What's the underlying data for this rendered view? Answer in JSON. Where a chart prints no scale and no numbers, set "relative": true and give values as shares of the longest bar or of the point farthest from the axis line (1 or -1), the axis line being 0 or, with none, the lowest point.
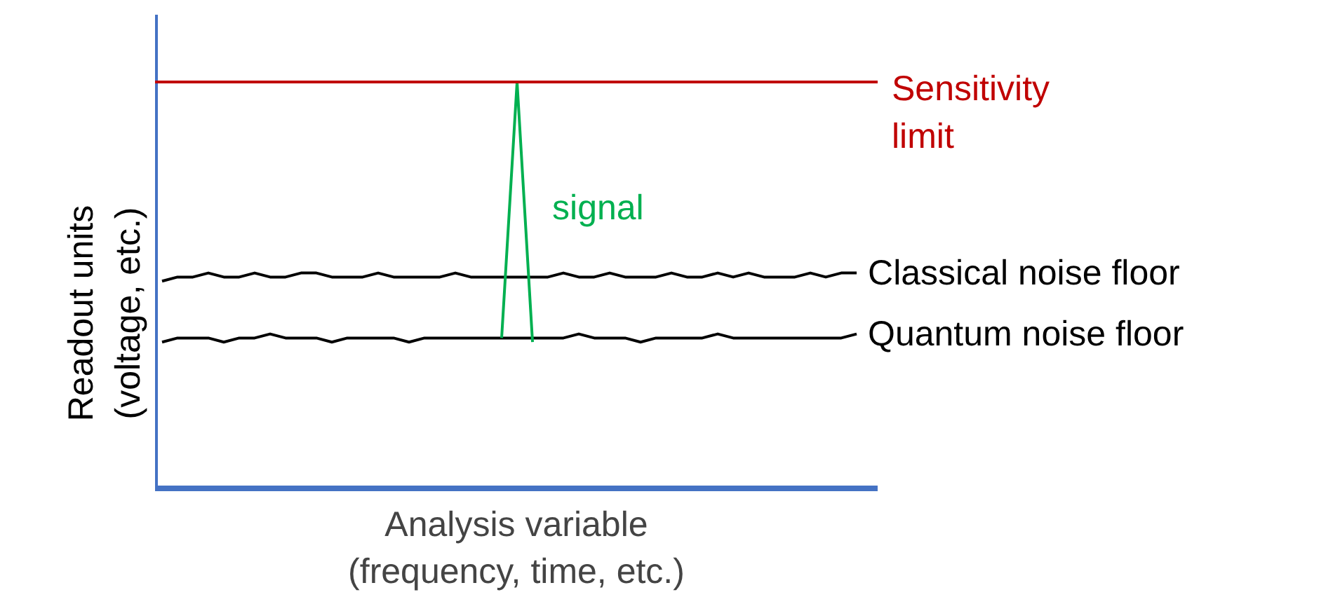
{
  "chart_data": {
    "type": "line",
    "relative": true,
    "xlabel": "Analysis variable (frequency, time, etc.)",
    "ylabel": "Readout units (voltage, etc.)",
    "categories": [
      null,
      null,
      null,
      null,
      null,
      null,
      null,
      null,
      null,
      null,
      null,
      null,
      null,
      null,
      null,
      null,
      null,
      null,
      null,
      null,
      null,
      null,
      null,
      null,
      null,
      null,
      null,
      null,
      null,
      null,
      null,
      null,
      null,
      null,
      null,
      null,
      null,
      null,
      null,
      null,
      null,
      null,
      null,
      null,
      null,
      null,
      null
    ],
    "series": [
      {
        "name": "Classical noise floor",
        "color": "#000000",
        "values": [
          0.51,
          0.52,
          0.52,
          0.53,
          0.52,
          0.52,
          0.53,
          0.52,
          0.52,
          0.53,
          0.53,
          0.52,
          0.52,
          0.52,
          0.53,
          0.52,
          0.52,
          0.52,
          0.52,
          0.53,
          0.52,
          0.52,
          0.52,
          0.52,
          0.52,
          0.52,
          0.53,
          0.52,
          0.52,
          0.53,
          0.52,
          0.52,
          0.52,
          0.53,
          0.52,
          0.52,
          0.53,
          0.52,
          0.53,
          0.52,
          0.52,
          0.52,
          0.53,
          0.52,
          0.53,
          0.53,
          null
        ]
      },
      {
        "name": "Quantum noise floor",
        "color": "#000000",
        "values": [
          0.36,
          0.37,
          0.37,
          0.37,
          0.36,
          0.37,
          0.37,
          0.38,
          0.37,
          0.37,
          0.37,
          0.36,
          0.37,
          0.37,
          0.37,
          0.37,
          0.36,
          0.37,
          0.37,
          0.37,
          0.37,
          0.37,
          0.37,
          0.37,
          0.37,
          0.37,
          0.37,
          0.38,
          0.37,
          0.37,
          0.37,
          0.36,
          0.37,
          0.37,
          0.37,
          0.37,
          0.38,
          0.37,
          0.37,
          0.37,
          0.37,
          0.37,
          0.37,
          0.37,
          0.37,
          0.38,
          null
        ]
      },
      {
        "name": "signal",
        "color": "#00b050",
        "values": [
          null,
          null,
          null,
          null,
          null,
          null,
          null,
          null,
          null,
          null,
          null,
          null,
          null,
          null,
          null,
          null,
          null,
          null,
          null,
          null,
          null,
          null,
          0.37,
          1,
          0.36,
          null,
          null,
          null,
          null,
          null,
          null,
          null,
          null,
          null,
          null,
          null,
          null,
          null,
          null,
          null,
          null,
          null,
          null,
          null,
          null,
          null,
          null
        ]
      }
    ],
    "ref_lines": [
      {
        "axis": "y",
        "value": 1,
        "label": "Sensitivity limit",
        "color": "#c00000"
      }
    ],
    "grid": false
  }
}
